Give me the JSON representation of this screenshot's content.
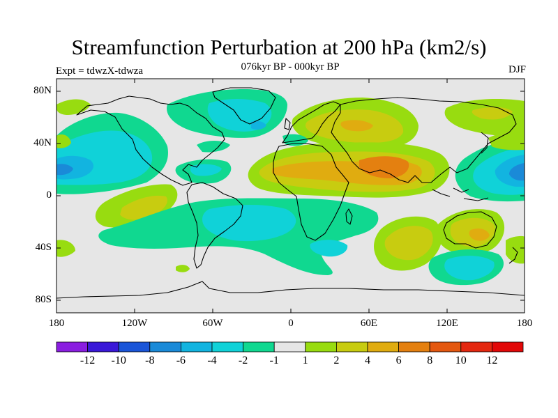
{
  "title": "Streamfunction Perturbation at 200 hPa (km2/s)",
  "subtitle": "076kyr BP - 000kyr BP",
  "experiment_label": "Expt = tdwzX-tdwza",
  "season": "DJF",
  "lat_ticks": [
    "80N",
    "40N",
    "0",
    "40S",
    "80S"
  ],
  "lon_ticks": [
    "180",
    "120W",
    "60W",
    "0",
    "60E",
    "120E",
    "180"
  ],
  "colorbar": {
    "colors": [
      "#8a1ee0",
      "#3a18d8",
      "#1a55d8",
      "#1a8ad8",
      "#12b4e0",
      "#10d2d8",
      "#10d890",
      "#e6e6e6",
      "#98dc10",
      "#c8cc10",
      "#e0ac10",
      "#e48010",
      "#e45810",
      "#e42810",
      "#e20808"
    ],
    "labels": [
      "-12",
      "-10",
      "-8",
      "-6",
      "-4",
      "-2",
      "-1",
      "1",
      "2",
      "4",
      "6",
      "8",
      "10",
      "12"
    ]
  }
}
